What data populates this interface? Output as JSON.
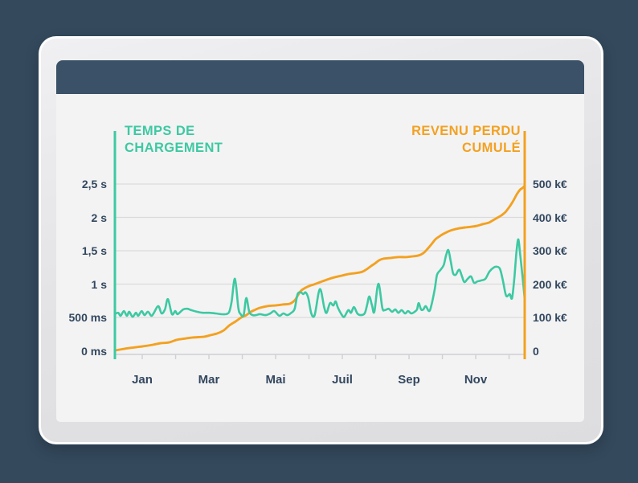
{
  "style": {
    "page_background": "#34495c",
    "header_bar_color": "#3a5168",
    "frame_color": "#e4e4e6",
    "panel_background": "#f3f3f4",
    "grid_color": "#dadadc",
    "axis_base_color": "#cfd0d3",
    "label_color": "#32475e",
    "teal_accent": "#3dc9a2",
    "orange_accent": "#f3a120"
  },
  "chart_data": {
    "type": "line",
    "title": "",
    "x_axis": {
      "unit": "month",
      "range": [
        0,
        12.29
      ],
      "tick_months": [
        0.82,
        1.82,
        2.82,
        3.82,
        4.82,
        5.82,
        6.82,
        7.82,
        8.82,
        9.82,
        10.82,
        11.82
      ],
      "labels": [
        {
          "label": "Jan",
          "month": 0.82
        },
        {
          "label": "Mar",
          "month": 2.82
        },
        {
          "label": "Mai",
          "month": 4.82
        },
        {
          "label": "Juil",
          "month": 6.82
        },
        {
          "label": "Sep",
          "month": 8.82
        },
        {
          "label": "Nov",
          "month": 10.82
        }
      ]
    },
    "y_left": {
      "title": "TEMPS DE CHARGEMENT",
      "title_lines": [
        "TEMPS DE",
        "CHARGEMENT"
      ],
      "unit": "ms",
      "range": [
        0,
        3290
      ],
      "ticks": [
        {
          "label": "2,5 s",
          "value": 2500
        },
        {
          "label": "2 s",
          "value": 2000
        },
        {
          "label": "1,5 s",
          "value": 1500
        },
        {
          "label": "1 s",
          "value": 1000
        },
        {
          "label": "500 ms",
          "value": 500
        },
        {
          "label": "0 ms",
          "value": 0
        }
      ]
    },
    "y_right": {
      "title": "REVENU PERDU CUMULÉ",
      "title_lines": [
        "REVENU PERDU",
        "CUMULÉ"
      ],
      "unit": "k€",
      "range": [
        0,
        660
      ],
      "ticks": [
        {
          "label": "500 k€",
          "value": 500
        },
        {
          "label": "400 k€",
          "value": 400
        },
        {
          "label": "300 k€",
          "value": 300
        },
        {
          "label": "200 k€",
          "value": 200
        },
        {
          "label": "100 k€",
          "value": 100
        },
        {
          "label": "0",
          "value": 0
        }
      ]
    },
    "grid": true,
    "legend_position": "axis-titles",
    "series": [
      {
        "name": "Temps de chargement",
        "axis": "left",
        "unit": "ms",
        "color": "#3dc9a2",
        "points": [
          [
            0,
            550
          ],
          [
            0.1,
            570
          ],
          [
            0.17,
            525
          ],
          [
            0.27,
            595
          ],
          [
            0.36,
            525
          ],
          [
            0.43,
            585
          ],
          [
            0.53,
            510
          ],
          [
            0.63,
            570
          ],
          [
            0.7,
            525
          ],
          [
            0.8,
            595
          ],
          [
            0.89,
            535
          ],
          [
            0.99,
            585
          ],
          [
            1.09,
            525
          ],
          [
            1.16,
            560
          ],
          [
            1.3,
            670
          ],
          [
            1.4,
            560
          ],
          [
            1.5,
            620
          ],
          [
            1.59,
            775
          ],
          [
            1.71,
            550
          ],
          [
            1.81,
            595
          ],
          [
            1.88,
            550
          ],
          [
            2.05,
            620
          ],
          [
            2.17,
            630
          ],
          [
            2.29,
            610
          ],
          [
            2.46,
            585
          ],
          [
            2.63,
            570
          ],
          [
            2.83,
            570
          ],
          [
            3.02,
            560
          ],
          [
            3.19,
            550
          ],
          [
            3.33,
            550
          ],
          [
            3.43,
            585
          ],
          [
            3.5,
            740
          ],
          [
            3.6,
            1080
          ],
          [
            3.7,
            645
          ],
          [
            3.77,
            550
          ],
          [
            3.86,
            535
          ],
          [
            3.94,
            790
          ],
          [
            4.03,
            585
          ],
          [
            4.13,
            535
          ],
          [
            4.23,
            535
          ],
          [
            4.35,
            550
          ],
          [
            4.52,
            535
          ],
          [
            4.66,
            560
          ],
          [
            4.78,
            595
          ],
          [
            4.93,
            525
          ],
          [
            5.05,
            560
          ],
          [
            5.17,
            535
          ],
          [
            5.29,
            570
          ],
          [
            5.39,
            630
          ],
          [
            5.48,
            850
          ],
          [
            5.58,
            875
          ],
          [
            5.65,
            850
          ],
          [
            5.72,
            875
          ],
          [
            5.8,
            790
          ],
          [
            5.89,
            560
          ],
          [
            5.99,
            535
          ],
          [
            6.11,
            875
          ],
          [
            6.18,
            900
          ],
          [
            6.28,
            645
          ],
          [
            6.35,
            570
          ],
          [
            6.45,
            715
          ],
          [
            6.55,
            680
          ],
          [
            6.62,
            740
          ],
          [
            6.69,
            645
          ],
          [
            6.81,
            535
          ],
          [
            6.88,
            510
          ],
          [
            7.0,
            610
          ],
          [
            7.08,
            570
          ],
          [
            7.17,
            655
          ],
          [
            7.27,
            560
          ],
          [
            7.37,
            535
          ],
          [
            7.49,
            560
          ],
          [
            7.56,
            680
          ],
          [
            7.63,
            815
          ],
          [
            7.71,
            680
          ],
          [
            7.78,
            585
          ],
          [
            7.9,
            1005
          ],
          [
            8.02,
            645
          ],
          [
            8.09,
            610
          ],
          [
            8.21,
            630
          ],
          [
            8.31,
            585
          ],
          [
            8.41,
            620
          ],
          [
            8.5,
            570
          ],
          [
            8.6,
            610
          ],
          [
            8.7,
            560
          ],
          [
            8.79,
            595
          ],
          [
            8.89,
            560
          ],
          [
            8.99,
            585
          ],
          [
            9.06,
            620
          ],
          [
            9.11,
            715
          ],
          [
            9.18,
            620
          ],
          [
            9.25,
            620
          ],
          [
            9.32,
            670
          ],
          [
            9.42,
            595
          ],
          [
            9.49,
            680
          ],
          [
            9.59,
            920
          ],
          [
            9.66,
            1140
          ],
          [
            9.76,
            1210
          ],
          [
            9.86,
            1285
          ],
          [
            9.93,
            1430
          ],
          [
            10.0,
            1510
          ],
          [
            10.07,
            1345
          ],
          [
            10.14,
            1165
          ],
          [
            10.22,
            1140
          ],
          [
            10.29,
            1200
          ],
          [
            10.34,
            1210
          ],
          [
            10.41,
            1115
          ],
          [
            10.48,
            1030
          ],
          [
            10.58,
            1080
          ],
          [
            10.68,
            1115
          ],
          [
            10.77,
            1020
          ],
          [
            10.87,
            1040
          ],
          [
            10.99,
            1055
          ],
          [
            11.11,
            1080
          ],
          [
            11.23,
            1185
          ],
          [
            11.35,
            1245
          ],
          [
            11.45,
            1260
          ],
          [
            11.55,
            1225
          ],
          [
            11.64,
            1040
          ],
          [
            11.71,
            860
          ],
          [
            11.76,
            815
          ],
          [
            11.84,
            850
          ],
          [
            11.91,
            790
          ],
          [
            11.98,
            1100
          ],
          [
            12.05,
            1525
          ],
          [
            12.1,
            1670
          ],
          [
            12.15,
            1465
          ],
          [
            12.2,
            1225
          ],
          [
            12.25,
            980
          ],
          [
            12.29,
            765
          ]
        ]
      },
      {
        "name": "Revenu perdu cumulé",
        "axis": "right",
        "unit": "k€",
        "color": "#f3a120",
        "points": [
          [
            0,
            1
          ],
          [
            0.41,
            8
          ],
          [
            0.82,
            13
          ],
          [
            1.14,
            18
          ],
          [
            1.38,
            23
          ],
          [
            1.62,
            25
          ],
          [
            1.86,
            33
          ],
          [
            2.13,
            37
          ],
          [
            2.34,
            40
          ],
          [
            2.66,
            42
          ],
          [
            2.87,
            47
          ],
          [
            3.07,
            52
          ],
          [
            3.26,
            61
          ],
          [
            3.43,
            76
          ],
          [
            3.62,
            88
          ],
          [
            3.79,
            100
          ],
          [
            3.94,
            107
          ],
          [
            4.08,
            117
          ],
          [
            4.23,
            124
          ],
          [
            4.35,
            129
          ],
          [
            4.57,
            134
          ],
          [
            4.81,
            136
          ],
          [
            5.05,
            139
          ],
          [
            5.24,
            141
          ],
          [
            5.39,
            151
          ],
          [
            5.48,
            165
          ],
          [
            5.58,
            180
          ],
          [
            5.68,
            187
          ],
          [
            5.82,
            194
          ],
          [
            5.97,
            199
          ],
          [
            6.16,
            206
          ],
          [
            6.35,
            213
          ],
          [
            6.57,
            220
          ],
          [
            6.79,
            225
          ],
          [
            7.0,
            230
          ],
          [
            7.22,
            233
          ],
          [
            7.42,
            237
          ],
          [
            7.56,
            245
          ],
          [
            7.68,
            254
          ],
          [
            7.8,
            262
          ],
          [
            7.92,
            271
          ],
          [
            8.04,
            276
          ],
          [
            8.24,
            278
          ],
          [
            8.48,
            281
          ],
          [
            8.72,
            281
          ],
          [
            8.91,
            283
          ],
          [
            9.11,
            286
          ],
          [
            9.25,
            293
          ],
          [
            9.37,
            305
          ],
          [
            9.49,
            319
          ],
          [
            9.61,
            334
          ],
          [
            9.73,
            343
          ],
          [
            9.86,
            351
          ],
          [
            10.0,
            358
          ],
          [
            10.14,
            363
          ],
          [
            10.31,
            367
          ],
          [
            10.51,
            370
          ],
          [
            10.7,
            372
          ],
          [
            10.87,
            375
          ],
          [
            11.04,
            380
          ],
          [
            11.21,
            384
          ],
          [
            11.35,
            392
          ],
          [
            11.47,
            399
          ],
          [
            11.59,
            406
          ],
          [
            11.71,
            416
          ],
          [
            11.84,
            433
          ],
          [
            11.96,
            452
          ],
          [
            12.05,
            469
          ],
          [
            12.15,
            483
          ],
          [
            12.22,
            488
          ],
          [
            12.29,
            495
          ]
        ]
      }
    ]
  }
}
